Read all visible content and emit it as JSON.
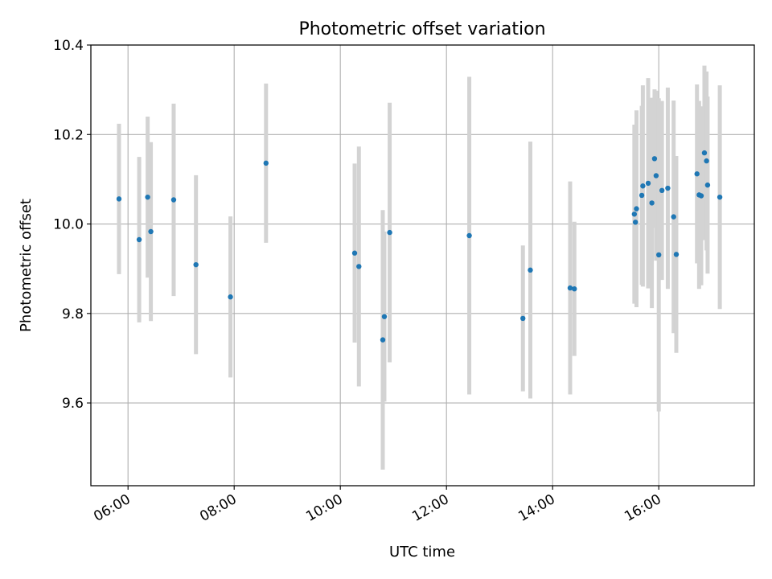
{
  "chart_data": {
    "type": "scatter",
    "title": "Photometric offset variation",
    "xlabel": "UTC time",
    "ylabel": "Photometric offset",
    "x_unit": "hours (UTC)",
    "xlim": [
      5.3,
      17.8
    ],
    "ylim": [
      9.415,
      10.4
    ],
    "grid": true,
    "colors": {
      "point": "#1f77b4",
      "errorbar": "#d3d3d3",
      "grid": "#b0b0b0"
    },
    "x_ticks": [
      {
        "value": 6,
        "label": "06:00"
      },
      {
        "value": 8,
        "label": "08:00"
      },
      {
        "value": 10,
        "label": "10:00"
      },
      {
        "value": 12,
        "label": "12:00"
      },
      {
        "value": 14,
        "label": "14:00"
      },
      {
        "value": 16,
        "label": "16:00"
      }
    ],
    "y_ticks": [
      {
        "value": 9.6,
        "label": "9.6"
      },
      {
        "value": 9.8,
        "label": "9.8"
      },
      {
        "value": 10.0,
        "label": "10.0"
      },
      {
        "value": 10.2,
        "label": "10.2"
      },
      {
        "value": 10.4,
        "label": "10.4"
      }
    ],
    "points": [
      {
        "x": 5.83,
        "y": 10.056,
        "err": 0.168
      },
      {
        "x": 6.21,
        "y": 9.965,
        "err": 0.185
      },
      {
        "x": 6.37,
        "y": 10.06,
        "err": 0.18
      },
      {
        "x": 6.43,
        "y": 9.983,
        "err": 0.2
      },
      {
        "x": 6.86,
        "y": 10.054,
        "err": 0.215
      },
      {
        "x": 7.28,
        "y": 9.909,
        "err": 0.2
      },
      {
        "x": 7.93,
        "y": 9.837,
        "err": 0.18
      },
      {
        "x": 8.6,
        "y": 10.136,
        "err": 0.178
      },
      {
        "x": 10.27,
        "y": 9.935,
        "err": 0.2
      },
      {
        "x": 10.35,
        "y": 9.905,
        "err": 0.268
      },
      {
        "x": 10.8,
        "y": 9.741,
        "err": 0.29
      },
      {
        "x": 10.83,
        "y": 9.793,
        "err": 0.19
      },
      {
        "x": 10.93,
        "y": 9.981,
        "err": 0.29
      },
      {
        "x": 12.43,
        "y": 9.974,
        "err": 0.355
      },
      {
        "x": 13.44,
        "y": 9.789,
        "err": 0.163
      },
      {
        "x": 13.58,
        "y": 9.897,
        "err": 0.287
      },
      {
        "x": 14.33,
        "y": 9.857,
        "err": 0.238
      },
      {
        "x": 14.41,
        "y": 9.855,
        "err": 0.15
      },
      {
        "x": 15.54,
        "y": 10.022,
        "err": 0.2
      },
      {
        "x": 15.56,
        "y": 10.004,
        "err": 0.18
      },
      {
        "x": 15.58,
        "y": 10.034,
        "err": 0.22
      },
      {
        "x": 15.68,
        "y": 10.064,
        "err": 0.2
      },
      {
        "x": 15.7,
        "y": 10.085,
        "err": 0.225
      },
      {
        "x": 15.8,
        "y": 10.091,
        "err": 0.235
      },
      {
        "x": 15.87,
        "y": 10.047,
        "err": 0.235
      },
      {
        "x": 15.92,
        "y": 10.146,
        "err": 0.155
      },
      {
        "x": 15.95,
        "y": 10.108,
        "err": 0.19
      },
      {
        "x": 16.0,
        "y": 9.931,
        "err": 0.35
      },
      {
        "x": 16.06,
        "y": 10.075,
        "err": 0.2
      },
      {
        "x": 16.17,
        "y": 10.08,
        "err": 0.225
      },
      {
        "x": 16.28,
        "y": 10.016,
        "err": 0.26
      },
      {
        "x": 16.33,
        "y": 9.932,
        "err": 0.22
      },
      {
        "x": 16.72,
        "y": 10.112,
        "err": 0.2
      },
      {
        "x": 16.76,
        "y": 10.065,
        "err": 0.21
      },
      {
        "x": 16.8,
        "y": 10.063,
        "err": 0.2
      },
      {
        "x": 16.86,
        "y": 10.159,
        "err": 0.195
      },
      {
        "x": 16.9,
        "y": 10.141,
        "err": 0.2
      },
      {
        "x": 16.92,
        "y": 10.087,
        "err": 0.198
      },
      {
        "x": 17.15,
        "y": 10.06,
        "err": 0.25
      }
    ]
  }
}
